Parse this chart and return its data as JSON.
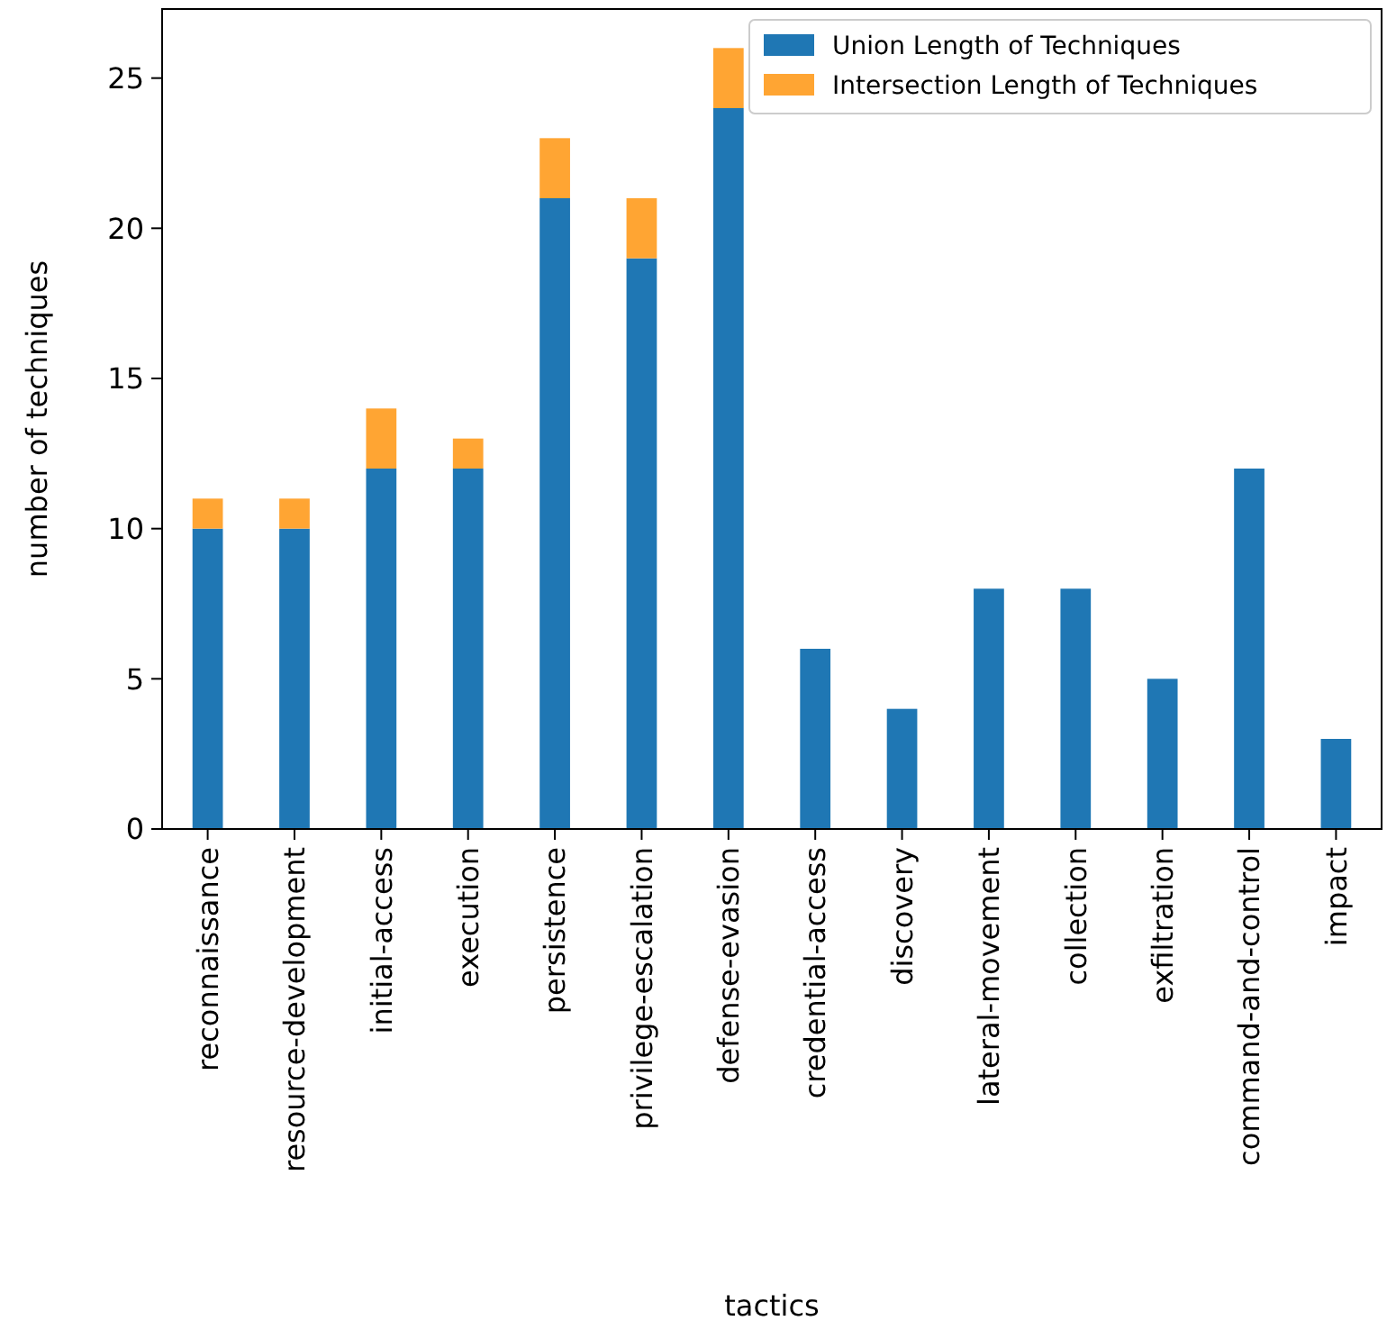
{
  "chart_data": {
    "type": "bar",
    "stacked": true,
    "xlabel": "tactics",
    "ylabel": "number of techniques",
    "categories": [
      "reconnaissance",
      "resource-development",
      "initial-access",
      "execution",
      "persistence",
      "privilege-escalation",
      "defense-evasion",
      "credential-access",
      "discovery",
      "lateral-movement",
      "collection",
      "exfiltration",
      "command-and-control",
      "impact"
    ],
    "series": [
      {
        "name": "Union Length of Techniques",
        "color": "#1f77b4",
        "values": [
          10,
          10,
          12,
          12,
          21,
          19,
          24,
          6,
          4,
          8,
          8,
          5,
          12,
          3
        ]
      },
      {
        "name": "Intersection Length of Techniques",
        "color": "#ffa533",
        "values": [
          1,
          1,
          2,
          1,
          2,
          2,
          2,
          0,
          0,
          0,
          0,
          0,
          0,
          0
        ]
      }
    ],
    "ylim": [
      0,
      27.3
    ],
    "yticks": [
      0,
      5,
      10,
      15,
      20,
      25
    ],
    "grid": false,
    "legend": "top right"
  }
}
